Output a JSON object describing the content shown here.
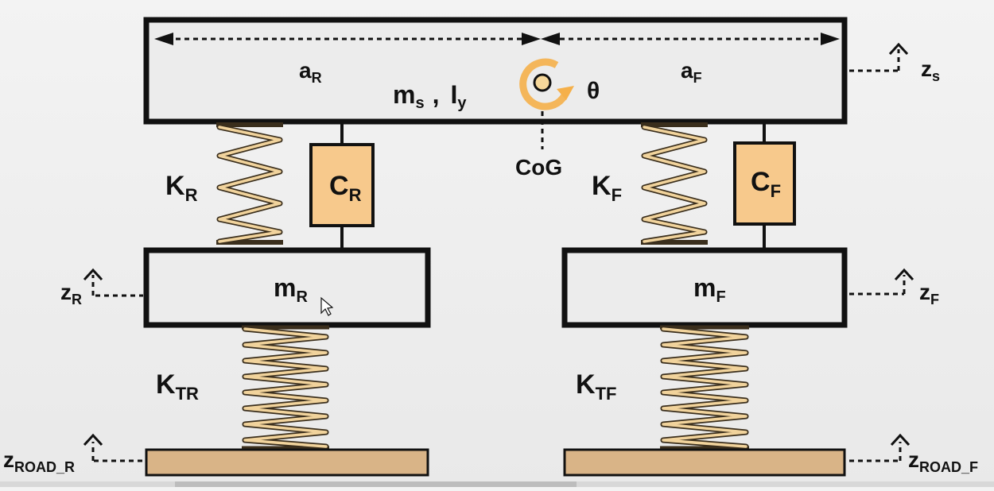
{
  "labels": {
    "a_R": "a",
    "a_R_sub": "R",
    "a_F": "a",
    "a_F_sub": "F",
    "ms": "m",
    "ms_sub": "s",
    "sep": ",",
    "Iy": "I",
    "Iy_sub": "y",
    "theta": "θ",
    "cog": "CoG",
    "z_s": "z",
    "z_s_sub": "s",
    "K_R": "K",
    "K_R_sub": "R",
    "C_R": "C",
    "C_R_sub": "R",
    "K_F": "K",
    "K_F_sub": "F",
    "C_F": "C",
    "C_F_sub": "F",
    "m_R": "m",
    "m_R_sub": "R",
    "m_F": "m",
    "m_F_sub": "F",
    "z_R": "z",
    "z_R_sub": "R",
    "z_F": "z",
    "z_F_sub": "F",
    "K_TR": "K",
    "K_TR_sub": "TR",
    "K_TF": "K",
    "K_TF_sub": "TF",
    "z_road_R": "z",
    "z_road_R_sub": "ROAD_R",
    "z_road_F": "z",
    "z_road_F_sub": "ROAD_F"
  },
  "colors": {
    "spring": "#3a2e1c",
    "spring_inner": "#f1d39c",
    "damper": "#f7c98c",
    "road": "#d9b487",
    "rotation_arrow": "#f5b04a",
    "body": "#ececec"
  }
}
